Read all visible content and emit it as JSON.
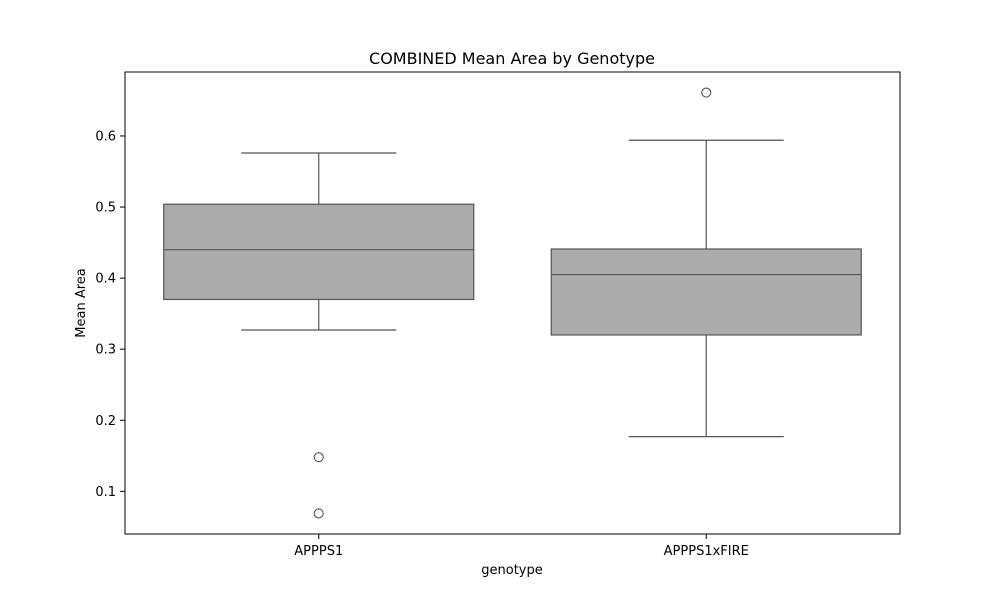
{
  "chart_data": {
    "type": "box",
    "title": "COMBINED Mean Area by Genotype",
    "xlabel": "genotype",
    "ylabel": "Mean Area",
    "categories": [
      "APPPS1",
      "APPPS1xFIRE"
    ],
    "ylim": [
      0.04,
      0.69
    ],
    "yticks": [
      0.1,
      0.2,
      0.3,
      0.4,
      0.5,
      0.6
    ],
    "ytick_labels": [
      "0.1",
      "0.2",
      "0.3",
      "0.4",
      "0.5",
      "0.6"
    ],
    "grid": false,
    "boxes": [
      {
        "category": "APPPS1",
        "whisker_low": 0.327,
        "q1": 0.37,
        "median": 0.44,
        "q3": 0.504,
        "whisker_high": 0.576,
        "outliers": [
          0.148,
          0.069
        ]
      },
      {
        "category": "APPPS1xFIRE",
        "whisker_low": 0.177,
        "q1": 0.32,
        "median": 0.405,
        "q3": 0.441,
        "whisker_high": 0.594,
        "outliers": [
          0.661
        ]
      }
    ],
    "colors": {
      "box_fill": "#ababab",
      "line": "#555555",
      "axis": "#000000"
    }
  }
}
